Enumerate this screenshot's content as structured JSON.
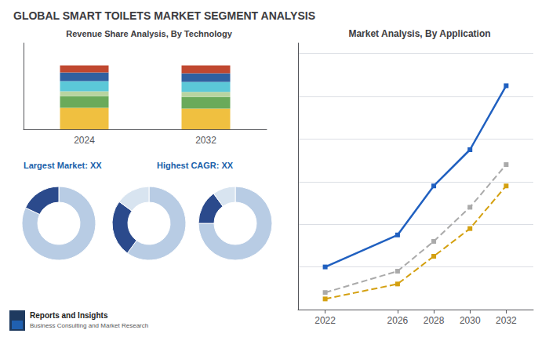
{
  "title": "GLOBAL SMART TOILETS MARKET SEGMENT ANALYSIS",
  "annotations": [
    "Reports and Insights",
    "Business Consulting and Market Research"
  ],
  "chart_data": [
    {
      "type": "bar",
      "title": "Revenue Share Analysis, By Technology",
      "categories": [
        "2024",
        "2032"
      ],
      "stacked": true,
      "ylim": [
        0,
        1.2
      ],
      "tick_labels": "x",
      "grid": false,
      "series": [
        {
          "color": "#f0c040",
          "values": [
            0.3,
            0.29
          ]
        },
        {
          "color": "#6aaa5a",
          "values": [
            0.16,
            0.16
          ]
        },
        {
          "color": "#b8d4a0",
          "values": [
            0.07,
            0.07
          ]
        },
        {
          "color": "#5bc8d8",
          "values": [
            0.14,
            0.14
          ]
        },
        {
          "color": "#3060a0",
          "values": [
            0.12,
            0.12
          ]
        },
        {
          "color": "#c04830",
          "values": [
            0.1,
            0.11
          ]
        }
      ]
    },
    {
      "type": "line",
      "title": "Market Analysis, By Application",
      "x": [
        2022,
        2026,
        2028,
        2030,
        2032
      ],
      "xlim": [
        2020.5,
        2033.5
      ],
      "xticks": [
        2022,
        2026,
        2028,
        2030,
        2032
      ],
      "ylim": [
        0,
        12.5
      ],
      "yticks": [
        0,
        2,
        4,
        6,
        8,
        10,
        12
      ],
      "grid": true,
      "tick_labels": "x",
      "series": [
        {
          "color": "#2060c0",
          "line_style": "solid",
          "marker": "square",
          "values": [
            2.0,
            3.5,
            5.8,
            7.5,
            10.5
          ]
        },
        {
          "color": "#aaaaaa",
          "line_style": "dashed",
          "marker": "square",
          "values": [
            0.8,
            1.8,
            3.2,
            4.8,
            6.8
          ]
        },
        {
          "color": "#d4a010",
          "line_style": "dashed",
          "marker": "square",
          "values": [
            0.5,
            1.2,
            2.5,
            3.8,
            5.8
          ]
        }
      ]
    },
    {
      "type": "pie",
      "annotation": "Largest Market: XX",
      "values": [
        82,
        18
      ],
      "colors": [
        "#b8cce4",
        "#2b4a8c"
      ]
    },
    {
      "type": "pie",
      "annotation": "Highest CAGR: XX",
      "values": [
        60,
        25,
        15
      ],
      "colors": [
        "#b8cce4",
        "#2b4a8c",
        "#d8e4f0"
      ]
    },
    {
      "type": "pie",
      "values": [
        75,
        15,
        10
      ],
      "colors": [
        "#b8cce4",
        "#2b4a8c",
        "#d8e4f0"
      ]
    }
  ]
}
